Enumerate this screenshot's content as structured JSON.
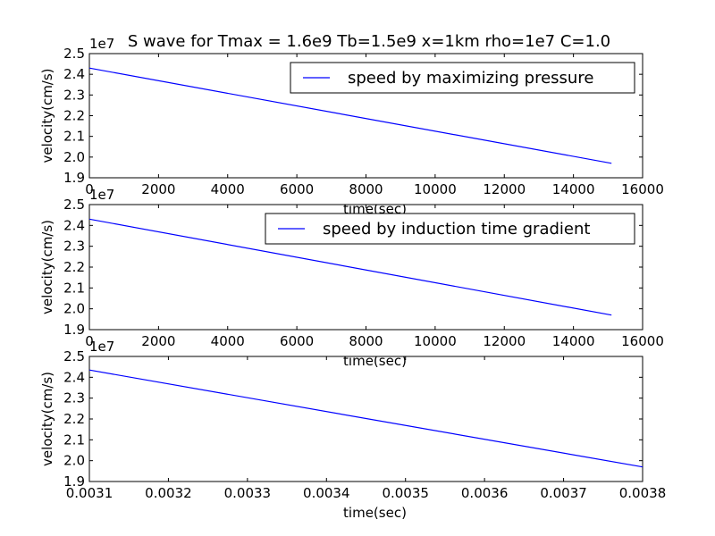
{
  "figure": {
    "title": "S wave for Tmax = 1.6e9 Tb=1.5e9 x=1km rho=1e7 C=1.0",
    "line_color": "#0000ff"
  },
  "chart_data": [
    {
      "type": "line",
      "offset_label": "1e7",
      "xlabel": "time(sec)",
      "ylabel": "velocity(cm/s)",
      "xlim": [
        0,
        16000
      ],
      "ylim": [
        1.9,
        2.5
      ],
      "xticks": [
        0,
        2000,
        4000,
        6000,
        8000,
        10000,
        12000,
        14000,
        16000
      ],
      "xtick_labels": [
        "0",
        "2000",
        "4000",
        "6000",
        "8000",
        "10000",
        "12000",
        "14000",
        "16000"
      ],
      "yticks": [
        1.9,
        2.0,
        2.1,
        2.2,
        2.3,
        2.4,
        2.5
      ],
      "ytick_labels": [
        "1.9",
        "2.0",
        "2.1",
        "2.2",
        "2.3",
        "2.4",
        "2.5"
      ],
      "legend_position": "top-right",
      "series": [
        {
          "name": "speed by  maximizing pressure",
          "x": [
            0,
            15100
          ],
          "y": [
            2.43,
            1.97
          ]
        }
      ]
    },
    {
      "type": "line",
      "offset_label": "1e7",
      "xlabel": "time(sec)",
      "ylabel": "velocity(cm/s)",
      "xlim": [
        0,
        16000
      ],
      "ylim": [
        1.9,
        2.5
      ],
      "xticks": [
        0,
        2000,
        4000,
        6000,
        8000,
        10000,
        12000,
        14000,
        16000
      ],
      "xtick_labels": [
        "0",
        "2000",
        "4000",
        "6000",
        "8000",
        "10000",
        "12000",
        "14000",
        "16000"
      ],
      "yticks": [
        1.9,
        2.0,
        2.1,
        2.2,
        2.3,
        2.4,
        2.5
      ],
      "ytick_labels": [
        "1.9",
        "2.0",
        "2.1",
        "2.2",
        "2.3",
        "2.4",
        "2.5"
      ],
      "legend_position": "top-right",
      "series": [
        {
          "name": "speed by  induction time gradient",
          "x": [
            0,
            15100
          ],
          "y": [
            2.43,
            1.97
          ]
        }
      ]
    },
    {
      "type": "line",
      "offset_label": "1e7",
      "xlabel": "time(sec)",
      "ylabel": "velocity(cm/s)",
      "xlim": [
        0.0031,
        0.0038
      ],
      "ylim": [
        1.9,
        2.5
      ],
      "xticks": [
        0.0031,
        0.0032,
        0.0033,
        0.0034,
        0.0035,
        0.0036,
        0.0037,
        0.0038
      ],
      "xtick_labels": [
        "0.0031",
        "0.0032",
        "0.0033",
        "0.0034",
        "0.0035",
        "0.0036",
        "0.0037",
        "0.0038"
      ],
      "yticks": [
        1.9,
        2.0,
        2.1,
        2.2,
        2.3,
        2.4,
        2.5
      ],
      "ytick_labels": [
        "1.9",
        "2.0",
        "2.1",
        "2.2",
        "2.3",
        "2.4",
        "2.5"
      ],
      "legend_position": "none",
      "series": [
        {
          "x": [
            0.0031,
            0.0038
          ],
          "y": [
            2.435,
            1.97
          ]
        }
      ]
    }
  ]
}
